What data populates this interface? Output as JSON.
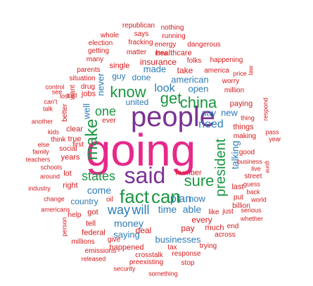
{
  "colors": {
    "red": "#d7191c",
    "blue": "#2c7bb6",
    "green": "#1a9641",
    "purple": "#7b3294",
    "pink": "#e7298a"
  },
  "words": [
    {
      "text": "going",
      "color": "pink"
    },
    {
      "text": "people",
      "color": "purple"
    },
    {
      "text": "said",
      "color": "purple"
    },
    {
      "text": "fact",
      "color": "green"
    },
    {
      "text": "can",
      "color": "green"
    },
    {
      "text": "make",
      "color": "green"
    },
    {
      "text": "know",
      "color": "green"
    },
    {
      "text": "get",
      "color": "green"
    },
    {
      "text": "china",
      "color": "green"
    },
    {
      "text": "sure",
      "color": "green"
    },
    {
      "text": "president",
      "color": "green"
    },
    {
      "text": "states",
      "color": "green"
    },
    {
      "text": "one",
      "color": "green"
    },
    {
      "text": "way",
      "color": "blue"
    },
    {
      "text": "will",
      "color": "blue"
    },
    {
      "text": "plan",
      "color": "blue"
    },
    {
      "text": "time",
      "color": "blue"
    },
    {
      "text": "able",
      "color": "blue"
    },
    {
      "text": "look",
      "color": "blue"
    },
    {
      "text": "need",
      "color": "blue"
    },
    {
      "text": "talking",
      "color": "blue"
    },
    {
      "text": "come",
      "color": "blue"
    },
    {
      "text": "money",
      "color": "blue"
    },
    {
      "text": "now",
      "color": "blue"
    },
    {
      "text": "say",
      "color": "blue"
    },
    {
      "text": "new",
      "color": "blue"
    },
    {
      "text": "well",
      "color": "blue"
    },
    {
      "text": "never",
      "color": "blue"
    },
    {
      "text": "made",
      "color": "blue"
    },
    {
      "text": "american",
      "color": "blue"
    },
    {
      "text": "open",
      "color": "blue"
    },
    {
      "text": "united",
      "color": "blue"
    },
    {
      "text": "done",
      "color": "blue"
    },
    {
      "text": "guy",
      "color": "blue"
    },
    {
      "text": "country",
      "color": "blue"
    },
    {
      "text": "saying",
      "color": "blue"
    },
    {
      "text": "businesses",
      "color": "blue"
    },
    {
      "text": "republican",
      "color": "red"
    },
    {
      "text": "nothing",
      "color": "red"
    },
    {
      "text": "whole",
      "color": "red"
    },
    {
      "text": "says",
      "color": "red"
    },
    {
      "text": "running",
      "color": "red"
    },
    {
      "text": "election",
      "color": "red"
    },
    {
      "text": "fracking",
      "color": "red"
    },
    {
      "text": "energy",
      "color": "red"
    },
    {
      "text": "dangerous",
      "color": "red"
    },
    {
      "text": "getting",
      "color": "red"
    },
    {
      "text": "matter",
      "color": "red"
    },
    {
      "text": "healthcare",
      "color": "red"
    },
    {
      "text": "many",
      "color": "red"
    },
    {
      "text": "insurance",
      "color": "red"
    },
    {
      "text": "folks",
      "color": "red"
    },
    {
      "text": "happening",
      "color": "red"
    },
    {
      "text": "parents",
      "color": "red"
    },
    {
      "text": "single",
      "color": "red"
    },
    {
      "text": "take",
      "color": "red"
    },
    {
      "text": "america",
      "color": "red"
    },
    {
      "text": "situation",
      "color": "red"
    },
    {
      "text": "drug",
      "color": "red"
    },
    {
      "text": "price",
      "color": "red"
    },
    {
      "text": "worry",
      "color": "red"
    },
    {
      "text": "law",
      "color": "red"
    },
    {
      "text": "control",
      "color": "red"
    },
    {
      "text": "lost",
      "color": "red"
    },
    {
      "text": "want",
      "color": "red"
    },
    {
      "text": "see",
      "color": "red"
    },
    {
      "text": "told",
      "color": "red"
    },
    {
      "text": "jobs",
      "color": "red"
    },
    {
      "text": "million",
      "color": "red"
    },
    {
      "text": "can’t",
      "color": "red"
    },
    {
      "text": "talk",
      "color": "red"
    },
    {
      "text": "another",
      "color": "red"
    },
    {
      "text": "better",
      "color": "red"
    },
    {
      "text": "ever",
      "color": "red"
    },
    {
      "text": "paying",
      "color": "red"
    },
    {
      "text": "respond",
      "color": "red"
    },
    {
      "text": "thing",
      "color": "red"
    },
    {
      "text": "things",
      "color": "red"
    },
    {
      "text": "pass",
      "color": "red"
    },
    {
      "text": "kids",
      "color": "red"
    },
    {
      "text": "think",
      "color": "red"
    },
    {
      "text": "true",
      "color": "red"
    },
    {
      "text": "clear",
      "color": "red"
    },
    {
      "text": "making",
      "color": "red"
    },
    {
      "text": "year",
      "color": "red"
    },
    {
      "text": "else",
      "color": "red"
    },
    {
      "text": "family",
      "color": "red"
    },
    {
      "text": "social",
      "color": "red"
    },
    {
      "text": "first",
      "color": "red"
    },
    {
      "text": "good",
      "color": "red"
    },
    {
      "text": "teachers",
      "color": "red"
    },
    {
      "text": "years",
      "color": "red"
    },
    {
      "text": "business",
      "color": "red"
    },
    {
      "text": "live",
      "color": "red"
    },
    {
      "text": "gone",
      "color": "red"
    },
    {
      "text": "schools",
      "color": "red"
    },
    {
      "text": "street",
      "color": "red"
    },
    {
      "text": "guess",
      "color": "red"
    },
    {
      "text": "around",
      "color": "red"
    },
    {
      "text": "lot",
      "color": "red"
    },
    {
      "text": "number",
      "color": "red"
    },
    {
      "text": "right",
      "color": "red"
    },
    {
      "text": "industry",
      "color": "red"
    },
    {
      "text": "last",
      "color": "red"
    },
    {
      "text": "back",
      "color": "red"
    },
    {
      "text": "put",
      "color": "red"
    },
    {
      "text": "world",
      "color": "red"
    },
    {
      "text": "oil",
      "color": "red"
    },
    {
      "text": "change",
      "color": "red"
    },
    {
      "text": "every",
      "color": "red"
    },
    {
      "text": "billion",
      "color": "red"
    },
    {
      "text": "americans",
      "color": "red"
    },
    {
      "text": "help",
      "color": "red"
    },
    {
      "text": "got",
      "color": "red"
    },
    {
      "text": "like",
      "color": "red"
    },
    {
      "text": "just",
      "color": "red"
    },
    {
      "text": "serious",
      "color": "red"
    },
    {
      "text": "whether",
      "color": "red"
    },
    {
      "text": "pay",
      "color": "red"
    },
    {
      "text": "tell",
      "color": "red"
    },
    {
      "text": "deal",
      "color": "red"
    },
    {
      "text": "much",
      "color": "red"
    },
    {
      "text": "person",
      "color": "red"
    },
    {
      "text": "federal",
      "color": "red"
    },
    {
      "text": "end",
      "color": "red"
    },
    {
      "text": "across",
      "color": "red"
    },
    {
      "text": "give",
      "color": "red"
    },
    {
      "text": "millions",
      "color": "red"
    },
    {
      "text": "happened",
      "color": "red"
    },
    {
      "text": "trying",
      "color": "red"
    },
    {
      "text": "tax",
      "color": "red"
    },
    {
      "text": "response",
      "color": "red"
    },
    {
      "text": "crosstalk",
      "color": "red"
    },
    {
      "text": "emissions",
      "color": "red"
    },
    {
      "text": "released",
      "color": "red"
    },
    {
      "text": "preexisting",
      "color": "red"
    },
    {
      "text": "stop",
      "color": "red"
    },
    {
      "text": "security",
      "color": "red"
    },
    {
      "text": "something",
      "color": "red"
    },
    {
      "text": "idea",
      "color": "red"
    }
  ]
}
